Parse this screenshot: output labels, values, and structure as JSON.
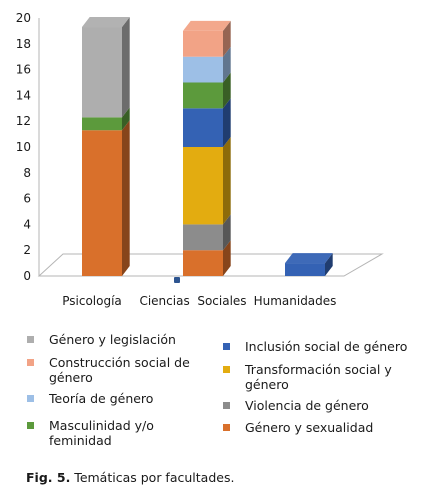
{
  "chart_data": {
    "type": "bar",
    "stacked": true,
    "three_d": true,
    "categories": [
      "Psicología",
      "Ciencias  Sociales",
      "Humanidades"
    ],
    "ylim": [
      0,
      20
    ],
    "yticks": [
      0,
      2,
      4,
      6,
      8,
      10,
      12,
      14,
      16,
      18,
      20
    ],
    "grid": false,
    "legend_position": "bottom",
    "series": [
      {
        "name": "Género y sexualidad",
        "color": "#d9702b",
        "values": [
          11.3,
          2,
          0
        ]
      },
      {
        "name": "Violencia de género",
        "color": "#8c8c8c",
        "values": [
          0,
          2,
          0
        ]
      },
      {
        "name": "Transformación social y género",
        "color": "#e3ac10",
        "values": [
          0,
          6,
          0
        ]
      },
      {
        "name": "Inclusión social de género",
        "color": "#3462b4",
        "values": [
          0,
          3,
          1
        ]
      },
      {
        "name": "Masculinidad y/o feminidad",
        "color": "#5c9a3c",
        "values": [
          1,
          2,
          0
        ]
      },
      {
        "name": "Teoría de género",
        "color": "#9dbfe6",
        "values": [
          0,
          2,
          0
        ]
      },
      {
        "name": "Construcción social de género",
        "color": "#f2a386",
        "values": [
          0,
          2,
          0
        ]
      },
      {
        "name": "Género y legislación",
        "color": "#aeaeae",
        "values": [
          7,
          0,
          0
        ]
      }
    ]
  },
  "legend": [
    {
      "text": "Género y legislación",
      "color": "#aeaeae"
    },
    {
      "text": "Construcción social de género",
      "color": "#f2a386"
    },
    {
      "text": "Teoría de género",
      "color": "#9dbfe6"
    },
    {
      "text": "Masculinidad y/o feminidad",
      "color": "#5c9a3c"
    },
    {
      "text": "Inclusión social de género",
      "color": "#3462b4"
    },
    {
      "text": "Transformación social y género",
      "color": "#e3ac10"
    },
    {
      "text": "Violencia de género",
      "color": "#8c8c8c"
    },
    {
      "text": "Género y sexualidad",
      "color": "#d9702b"
    }
  ],
  "caption": {
    "label": "Fig. 5.",
    "text": " Temáticas por facultades."
  }
}
